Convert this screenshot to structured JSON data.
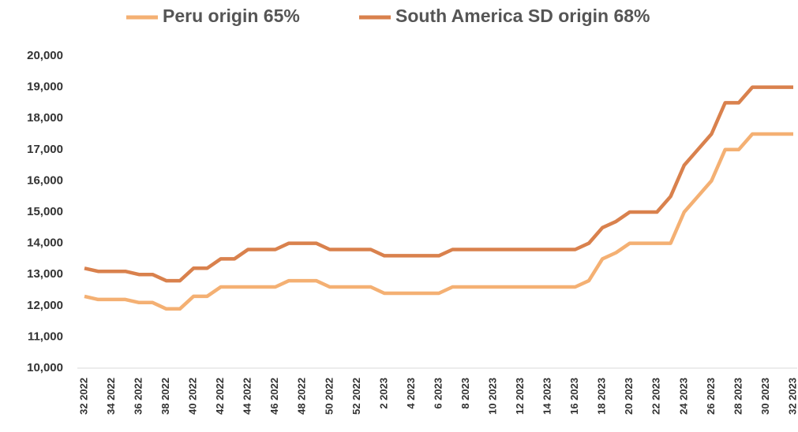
{
  "chart_data": {
    "type": "line",
    "categories": [
      "32 2022",
      null,
      "34 2022",
      null,
      "36 2022",
      null,
      "38 2022",
      null,
      "40 2022",
      null,
      "42 2022",
      null,
      "44 2022",
      null,
      "46 2022",
      null,
      "48 2022",
      null,
      "50 2022",
      null,
      "52 2022",
      null,
      "2 2023",
      null,
      "4 2023",
      null,
      "6 2023",
      null,
      "8 2023",
      null,
      "10 2023",
      null,
      "12 2023",
      null,
      "14 2023",
      null,
      "16 2023",
      null,
      "18 2023",
      null,
      "20 2023",
      null,
      "22 2023",
      null,
      "24 2023",
      null,
      "26 2023",
      null,
      "28 2023",
      null,
      "30 2023",
      null,
      "32 2023"
    ],
    "series": [
      {
        "name": "Peru origin 65%",
        "color": "#f4b073",
        "values": [
          12300,
          12200,
          12200,
          12200,
          12100,
          12100,
          11900,
          11900,
          12300,
          12300,
          12600,
          12600,
          12600,
          12600,
          12600,
          12800,
          12800,
          12800,
          12600,
          12600,
          12600,
          12600,
          12400,
          12400,
          12400,
          12400,
          12400,
          12600,
          12600,
          12600,
          12600,
          12600,
          12600,
          12600,
          12600,
          12600,
          12600,
          12800,
          13500,
          13700,
          14000,
          14000,
          14000,
          14000,
          15000,
          15500,
          16000,
          17000,
          17000,
          17500,
          17500,
          17500,
          17500
        ]
      },
      {
        "name": "South America SD origin 68%",
        "color": "#d9814d",
        "values": [
          13200,
          13100,
          13100,
          13100,
          13000,
          13000,
          12800,
          12800,
          13200,
          13200,
          13500,
          13500,
          13800,
          13800,
          13800,
          14000,
          14000,
          14000,
          13800,
          13800,
          13800,
          13800,
          13600,
          13600,
          13600,
          13600,
          13600,
          13800,
          13800,
          13800,
          13800,
          13800,
          13800,
          13800,
          13800,
          13800,
          13800,
          14000,
          14500,
          14700,
          15000,
          15000,
          15000,
          15500,
          16500,
          17000,
          17500,
          18500,
          18500,
          19000,
          19000,
          19000,
          19000
        ]
      }
    ],
    "ylim": [
      10000,
      20000
    ],
    "yticks": [
      {
        "value": 10000,
        "label": "10,000"
      },
      {
        "value": 11000,
        "label": "11,000"
      },
      {
        "value": 12000,
        "label": "12,000"
      },
      {
        "value": 13000,
        "label": "13,000"
      },
      {
        "value": 14000,
        "label": "14,000"
      },
      {
        "value": 15000,
        "label": "15,000"
      },
      {
        "value": 16000,
        "label": "16,000"
      },
      {
        "value": 17000,
        "label": "17,000"
      },
      {
        "value": 18000,
        "label": "18,000"
      },
      {
        "value": 19000,
        "label": "19,000"
      },
      {
        "value": 20000,
        "label": "20,000"
      }
    ],
    "legend": "top"
  }
}
